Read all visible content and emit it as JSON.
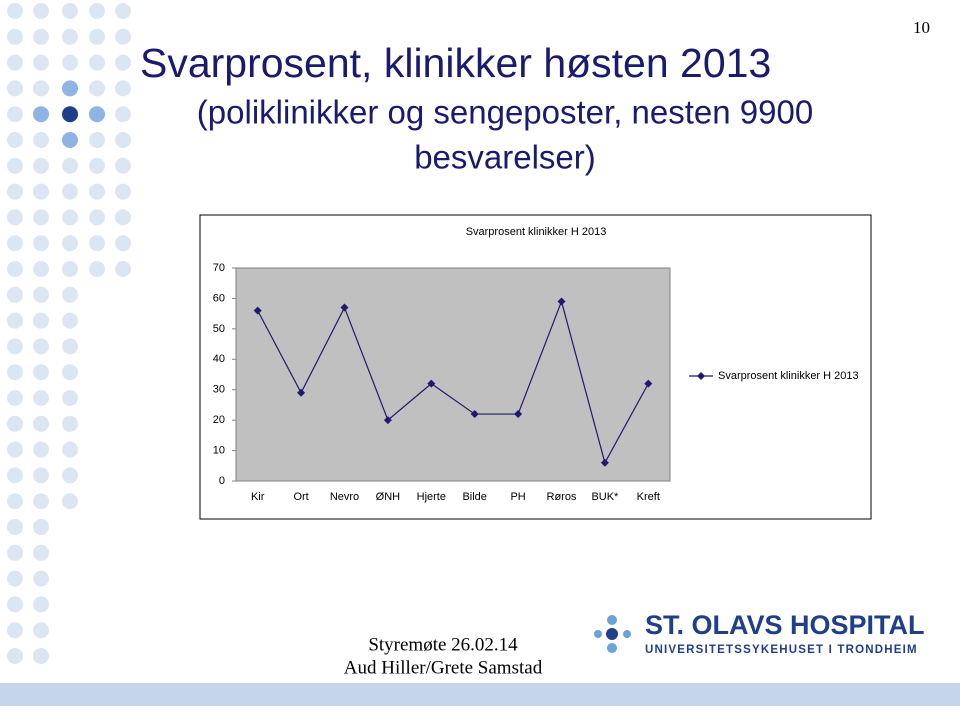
{
  "slide": {
    "page_number": "10",
    "title_lines": [
      "Svarprosent, klinikker høsten 2013",
      "(poliklinikker og sengeposter, nesten 9900",
      "besvarelser)"
    ],
    "footer_lines": [
      "Styremøte 26.02.14",
      "Aud Hiller/Grete Samstad"
    ],
    "logo_name": "ST. OLAVS HOSPITAL",
    "logo_subtitle": "UNIVERSITETSSYKEHUSET I TRONDHEIM"
  },
  "chart_data": {
    "type": "line",
    "title": "Svarprosent klinikker H 2013",
    "categories": [
      "Kir",
      "Ort",
      "Nevro",
      "ØNH",
      "Hjerte",
      "Bilde",
      "PH",
      "Røros",
      "BUK*",
      "Kreft"
    ],
    "series": [
      {
        "name": "Svarprosent klinikker H 2013",
        "color": "#1f1a6e",
        "values": [
          56,
          29,
          57,
          20,
          32,
          22,
          22,
          59,
          6,
          32
        ]
      }
    ],
    "ylim": [
      0,
      70
    ],
    "yticks": [
      0,
      10,
      20,
      30,
      40,
      50,
      60,
      70
    ],
    "grid": false,
    "legend": "right"
  }
}
